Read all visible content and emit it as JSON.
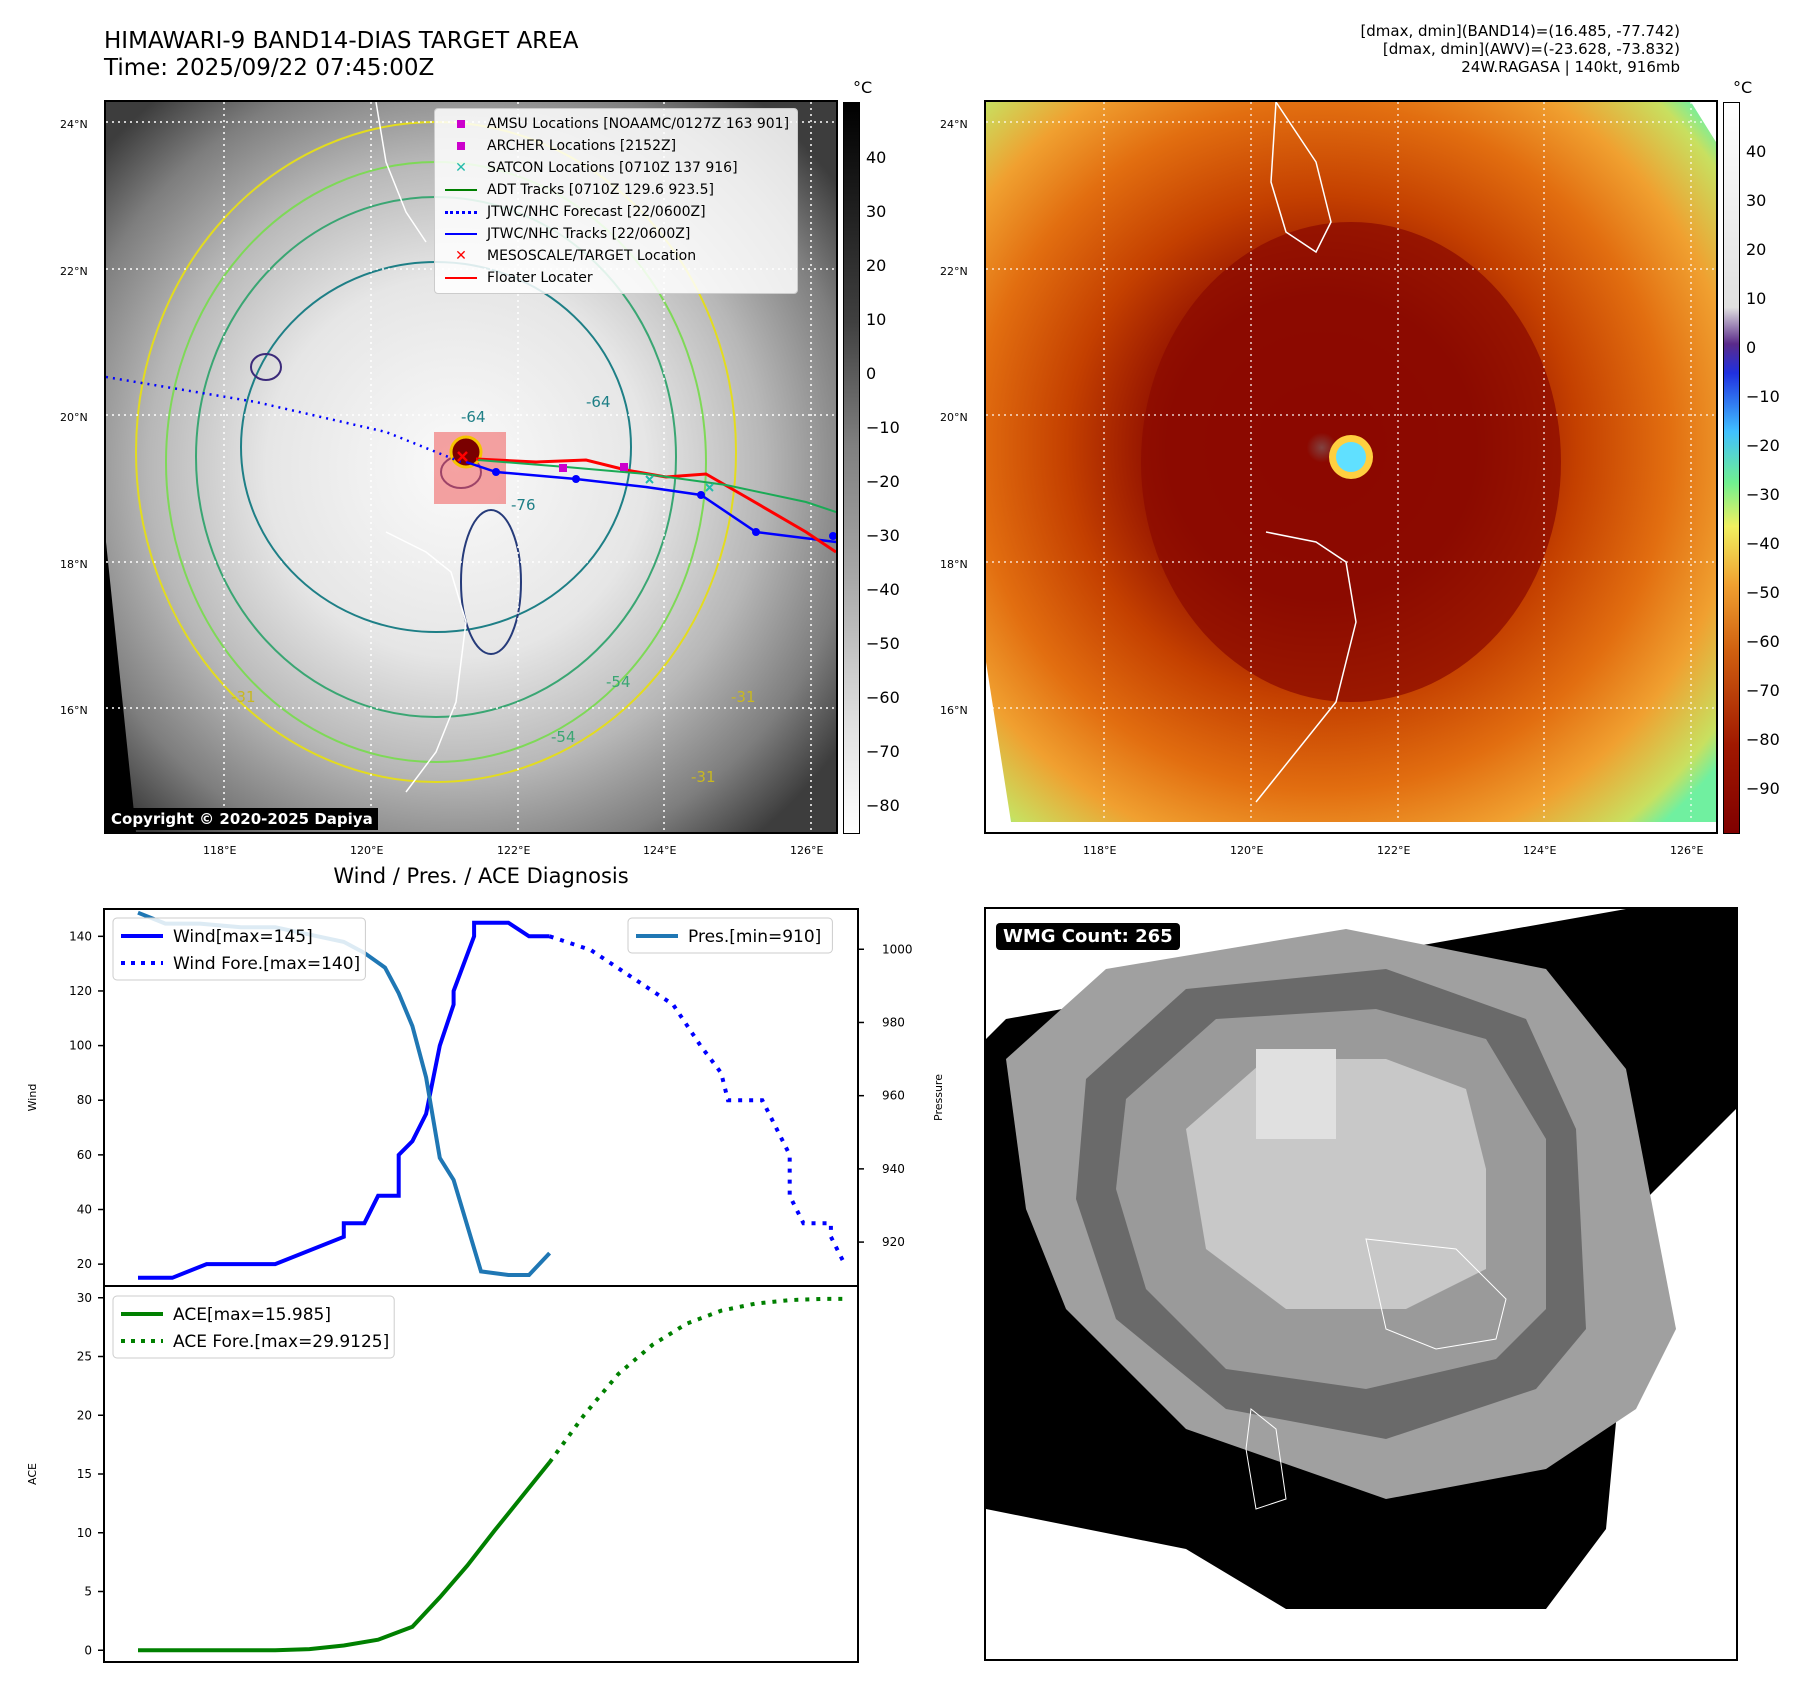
{
  "header": {
    "title_line1": "HIMAWARI-9 BAND14-DIAS TARGET AREA",
    "title_line2": "Time: 2025/09/22 07:45:00Z",
    "info_line1": "[dmax, dmin](BAND14)=(16.485, -77.742)",
    "info_line2": "[dmax, dmin](AWV)=(-23.628, -73.832)",
    "info_line3": "24W.RAGASA | 140kt, 916mb"
  },
  "map": {
    "lon_labels": [
      "118°E",
      "120°E",
      "122°E",
      "124°E",
      "126°E"
    ],
    "lat_labels": [
      "24°N",
      "22°N",
      "20°N",
      "18°N",
      "16°N"
    ],
    "copyright": "Copyright © 2020-2025 Dapiya",
    "contour_labels": [
      "-64",
      "-64",
      "-76",
      "-54",
      "-54",
      "-31",
      "-31",
      "-31"
    ],
    "legend": [
      {
        "label": "AMSU Locations [NOAAMC/0127Z 163 901]",
        "color": "#cc00cc",
        "marker": "square"
      },
      {
        "label": "ARCHER Locations [2152Z]",
        "color": "#cc00cc",
        "marker": "square"
      },
      {
        "label": "SATCON Locations [0710Z 137 916]",
        "color": "#22bbaa",
        "marker": "x"
      },
      {
        "label": "ADT Tracks [0710Z 129.6 923.5]",
        "color": "#008000",
        "marker": "line"
      },
      {
        "label": "JTWC/NHC Forecast [22/0600Z]",
        "color": "#0000ff",
        "marker": "dotted"
      },
      {
        "label": "JTWC/NHC Tracks [22/0600Z]",
        "color": "#0000ff",
        "marker": "line-dot"
      },
      {
        "label": "MESOSCALE/TARGET Location",
        "color": "#ff0000",
        "marker": "x"
      },
      {
        "label": "Floater Locater",
        "color": "#ff0000",
        "marker": "line"
      }
    ]
  },
  "colorbar_left": {
    "unit": "°C",
    "ticks": [
      "40",
      "30",
      "20",
      "10",
      "0",
      "−10",
      "−20",
      "−30",
      "−40",
      "−50",
      "−60",
      "−70",
      "−80"
    ]
  },
  "colorbar_right": {
    "unit": "°C",
    "ticks": [
      "40",
      "30",
      "20",
      "10",
      "0",
      "−10",
      "−20",
      "−30",
      "−40",
      "−50",
      "−60",
      "−70",
      "−80",
      "−90"
    ]
  },
  "wmg": {
    "label": "WMG Count: 265"
  },
  "chart_data": [
    {
      "type": "line",
      "title": "Wind / Pres. / ACE Diagnosis",
      "ylabel": "Wind",
      "ylabel_right": "Pressure",
      "ylim": [
        12,
        150
      ],
      "ylim_right": [
        908,
        1011
      ],
      "yticks": [
        20,
        40,
        60,
        80,
        100,
        120,
        140
      ],
      "yticks_right": [
        920,
        940,
        960,
        980,
        1000
      ],
      "x_range": [
        0,
        100
      ],
      "series": [
        {
          "name": "Wind[max=145]",
          "color": "#0000ff",
          "style": "solid",
          "axis": "left",
          "x": [
            0,
            5,
            5,
            10,
            10,
            20,
            20,
            30,
            30,
            33,
            33,
            35,
            35,
            38,
            38,
            40,
            40,
            42,
            42,
            44,
            44,
            46,
            46,
            49,
            49,
            52,
            52,
            54,
            54,
            57,
            57,
            60
          ],
          "y": [
            15,
            15,
            15,
            20,
            20,
            20,
            20,
            30,
            35,
            35,
            35,
            45,
            45,
            45,
            60,
            65,
            65,
            75,
            75,
            100,
            100,
            115,
            120,
            140,
            145,
            145,
            145,
            145,
            145,
            140,
            140,
            140
          ]
        },
        {
          "name": "Wind Fore.[max=140]",
          "color": "#0000ff",
          "style": "dotted",
          "axis": "left",
          "x": [
            60,
            66,
            72,
            78,
            82,
            85,
            86,
            91,
            91,
            95,
            95,
            97,
            97,
            101,
            101,
            103
          ],
          "y": [
            140,
            135,
            125,
            115,
            100,
            90,
            80,
            80,
            80,
            60,
            45,
            35,
            35,
            35,
            30,
            20
          ]
        },
        {
          "name": "Pres.[min=910]",
          "color": "#1f77b4",
          "style": "solid",
          "axis": "right",
          "x": [
            0,
            4,
            9,
            15,
            20,
            25,
            30,
            33,
            36,
            38,
            40,
            42,
            44,
            46,
            50,
            54,
            57,
            60
          ],
          "y": [
            1010,
            1007,
            1007,
            1006,
            1006,
            1004,
            1002,
            999,
            995,
            988,
            979,
            965,
            943,
            937,
            912,
            911,
            911,
            917
          ]
        }
      ]
    },
    {
      "type": "line",
      "ylabel": "ACE",
      "ylim": [
        -1,
        31
      ],
      "yticks": [
        0,
        5,
        10,
        15,
        20,
        25,
        30
      ],
      "x_range": [
        0,
        100
      ],
      "series": [
        {
          "name": "ACE[max=15.985]",
          "color": "#008000",
          "style": "solid",
          "x": [
            0,
            10,
            20,
            25,
            30,
            35,
            40,
            44,
            48,
            52,
            56,
            60
          ],
          "y": [
            0,
            0,
            0,
            0.1,
            0.4,
            0.9,
            2.0,
            4.5,
            7.2,
            10.2,
            13.1,
            16.0
          ]
        },
        {
          "name": "ACE Fore.[max=29.9125]",
          "color": "#008000",
          "style": "dotted",
          "x": [
            60,
            65,
            70,
            75,
            80,
            85,
            90,
            95,
            100,
            103
          ],
          "y": [
            16.0,
            20.0,
            23.5,
            26.0,
            27.8,
            28.9,
            29.5,
            29.8,
            29.9,
            29.9
          ]
        }
      ]
    }
  ]
}
